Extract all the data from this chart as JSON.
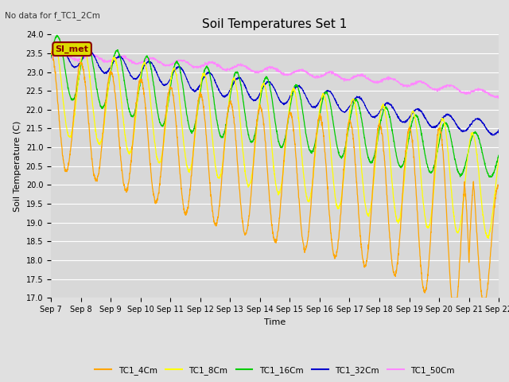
{
  "title": "Soil Temperatures Set 1",
  "subtitle": "No data for f_TC1_2Cm",
  "xlabel": "Time",
  "ylabel": "Soil Temperature (C)",
  "ylim": [
    17.0,
    24.0
  ],
  "yticks": [
    17.0,
    17.5,
    18.0,
    18.5,
    19.0,
    19.5,
    20.0,
    20.5,
    21.0,
    21.5,
    22.0,
    22.5,
    23.0,
    23.5,
    24.0
  ],
  "x_labels": [
    "Sep 7",
    "Sep 8",
    "Sep 9",
    "Sep 10",
    "Sep 11",
    "Sep 12",
    "Sep 13",
    "Sep 14",
    "Sep 15",
    "Sep 16",
    "Sep 17",
    "Sep 18",
    "Sep 19",
    "Sep 20",
    "Sep 21",
    "Sep 22"
  ],
  "series_colors": {
    "TC1_4Cm": "#FFA500",
    "TC1_8Cm": "#FFFF00",
    "TC1_16Cm": "#00CC00",
    "TC1_32Cm": "#0000CC",
    "TC1_50Cm": "#FF88FF"
  },
  "background_color": "#E0E0E0",
  "plot_bg_color": "#D8D8D8",
  "annotation_text": "SI_met",
  "annotation_bg": "#DDDD00",
  "annotation_border": "#880000",
  "grid_color": "#FFFFFF",
  "title_fontsize": 11,
  "label_fontsize": 8,
  "tick_fontsize": 7
}
